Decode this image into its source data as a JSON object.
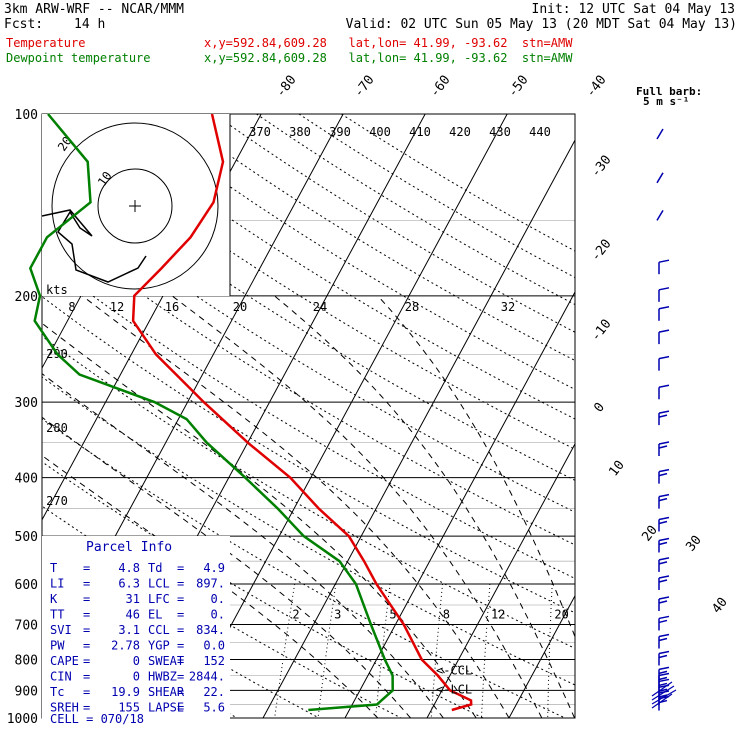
{
  "header": {
    "model": "3km ARW-WRF -- NCAR/MMM",
    "init": "Init: 12 UTC Sat 04 May 13",
    "fcst_label": "Fcst:",
    "fcst_value": "14 h",
    "valid": "Valid: 02 UTC Sun 05 May 13 (20 MDT Sat 04 May 13)",
    "temp_label": "Temperature",
    "temp_loc": "x,y=592.84,609.28   lat,lon= 41.99, -93.62  stn=AMW",
    "dew_label": "Dewpoint temperature",
    "dew_loc": "x,y=592.84,609.28   lat,lon= 41.99, -93.62  stn=AMW"
  },
  "colors": {
    "temperature": "#e00000",
    "dewpoint": "#008000",
    "barbs": "#0000b0",
    "text": "#000000",
    "header_red": "#e00000",
    "header_green": "#008000"
  },
  "chart_data": {
    "type": "skew-t",
    "pressure_levels": [
      100,
      200,
      300,
      400,
      500,
      600,
      700,
      800,
      900,
      1000
    ],
    "isotherm_labels": [
      "-80",
      "-70",
      "-60",
      "-50",
      "-40",
      "-30",
      "-20",
      "-10",
      "0",
      "10",
      "20",
      "30",
      "40"
    ],
    "theta_labels": [
      "370",
      "380",
      "390",
      "400",
      "410",
      "420",
      "430",
      "440"
    ],
    "theta_lower_labels": [
      "290",
      "280",
      "270"
    ],
    "mixing_ratio_labels": [
      "2",
      "3",
      "5",
      "8",
      "12",
      "20"
    ],
    "hodograph": {
      "unit_label": "kts",
      "ring_labels": [
        "10",
        "20"
      ],
      "axis_labels": [
        "8",
        "12",
        "16",
        "20",
        "24",
        "28",
        "32"
      ]
    },
    "temperature_profile": [
      {
        "p": 970,
        "t": 12.5
      },
      {
        "p": 950,
        "t": 14.5
      },
      {
        "p": 935,
        "t": 14.2
      },
      {
        "p": 900,
        "t": 11.0
      },
      {
        "p": 850,
        "t": 8.5
      },
      {
        "p": 800,
        "t": 5.5
      },
      {
        "p": 700,
        "t": 1.0
      },
      {
        "p": 600,
        "t": -5.0
      },
      {
        "p": 550,
        "t": -8.0
      },
      {
        "p": 500,
        "t": -11.5
      },
      {
        "p": 450,
        "t": -17.0
      },
      {
        "p": 400,
        "t": -22.5
      },
      {
        "p": 350,
        "t": -30.0
      },
      {
        "p": 300,
        "t": -38.0
      },
      {
        "p": 250,
        "t": -47.0
      },
      {
        "p": 220,
        "t": -52.0
      },
      {
        "p": 200,
        "t": -53.5
      },
      {
        "p": 180,
        "t": -52.0
      },
      {
        "p": 160,
        "t": -50.5
      },
      {
        "p": 140,
        "t": -50.0
      },
      {
        "p": 120,
        "t": -51.5
      },
      {
        "p": 100,
        "t": -56.0
      }
    ],
    "dewpoint_profile": [
      {
        "p": 970,
        "td": -5.0
      },
      {
        "p": 950,
        "td": 3.0
      },
      {
        "p": 900,
        "td": 4.0
      },
      {
        "p": 850,
        "td": 3.0
      },
      {
        "p": 800,
        "td": 1.0
      },
      {
        "p": 700,
        "td": -3.0
      },
      {
        "p": 600,
        "td": -7.5
      },
      {
        "p": 550,
        "td": -11.0
      },
      {
        "p": 500,
        "td": -17.0
      },
      {
        "p": 450,
        "td": -22.0
      },
      {
        "p": 400,
        "td": -28.0
      },
      {
        "p": 350,
        "td": -35.0
      },
      {
        "p": 320,
        "td": -39.0
      },
      {
        "p": 300,
        "td": -44.0
      },
      {
        "p": 270,
        "td": -55.0
      },
      {
        "p": 250,
        "td": -59.0
      },
      {
        "p": 220,
        "td": -64.0
      },
      {
        "p": 200,
        "td": -65.0
      },
      {
        "p": 180,
        "td": -68.0
      },
      {
        "p": 160,
        "td": -68.0
      },
      {
        "p": 140,
        "td": -65.0
      },
      {
        "p": 120,
        "td": -68.0
      },
      {
        "p": 100,
        "td": -76.0
      }
    ],
    "level_markers": [
      {
        "label": "<-CCL",
        "p": 834
      },
      {
        "label": "<-LCL",
        "p": 897
      }
    ],
    "wind_barb_levels": [
      180,
      200,
      215,
      235,
      260,
      290,
      320,
      360,
      400,
      440,
      480,
      520,
      560,
      600,
      650,
      700,
      750,
      800,
      850,
      870,
      890,
      910,
      930,
      950
    ],
    "barb_scale": {
      "title": "Full barb:",
      "value": "5 m s⁻¹"
    }
  },
  "parcel_info": {
    "title": "Parcel Info",
    "rows": [
      [
        "T",
        "=",
        "4.8",
        "Td",
        "=",
        "4.9"
      ],
      [
        "LI",
        "=",
        "6.3",
        "LCL",
        "=",
        "897."
      ],
      [
        "K",
        "=",
        "31",
        "LFC",
        "=",
        "0."
      ],
      [
        "TT",
        "=",
        "46",
        "EL",
        "=",
        "0."
      ],
      [
        "SVI",
        "=",
        "3.1",
        "CCL",
        "=",
        "834."
      ],
      [
        "PW",
        "=",
        "2.78",
        "YGP",
        "=",
        "0.0"
      ],
      [
        "CAPE",
        "=",
        "0",
        "SWEAT",
        "=",
        "152"
      ],
      [
        "CIN",
        "=",
        "0",
        "HWBZ",
        "=",
        "2844."
      ],
      [
        "Tc",
        "=",
        "19.9",
        "SHEAR",
        "=",
        "22."
      ],
      [
        "SREH",
        "=",
        "155",
        "LAPSE",
        "=",
        "5.6"
      ]
    ],
    "cell": "CELL = 070/18"
  }
}
